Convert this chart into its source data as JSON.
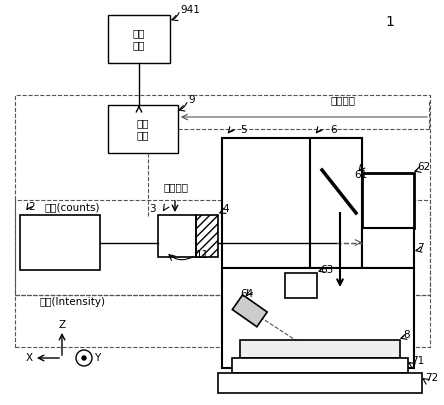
{
  "bg_color": "#ffffff",
  "line_color": "#000000",
  "gray_color": "#888888",
  "light_gray": "#cccccc",
  "title_num": "1",
  "label_941": "941",
  "label_9": "9",
  "label_2": "2",
  "label_3": "3",
  "label_4": "4",
  "label_5": "5",
  "label_6": "6",
  "label_7": "7",
  "label_8": "8",
  "label_11": "11",
  "label_61": "61",
  "label_62": "62",
  "label_63": "63",
  "label_64": "64",
  "label_71": "71",
  "label_72": "72",
  "text_display": "显示\n装置",
  "text_control": "控制\n装置",
  "text_pulse": "脉冲波形",
  "text_control_signal": "控制信号",
  "text_brightness_counts": "亮度(counts)",
  "text_brightness_intensity": "亮度(Intensity)",
  "text_z": "Z",
  "text_x": "X",
  "text_y": "Y"
}
